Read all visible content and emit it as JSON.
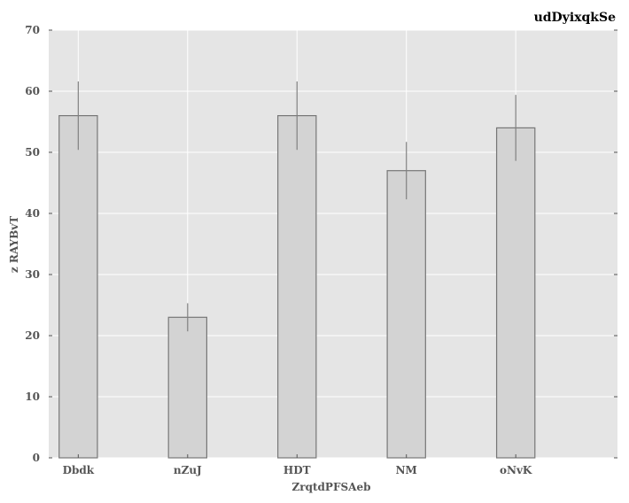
{
  "chart_data": {
    "type": "bar",
    "title": "udDyixqkSe",
    "xlabel": "ZrqtdPFSAeb",
    "ylabel": "z RAYBvT",
    "categories": [
      "Dbdk",
      "nZuJ",
      "HDT",
      "NM",
      "oNvK"
    ],
    "values": [
      56,
      23,
      56,
      47,
      54
    ],
    "errors": [
      5.6,
      2.3,
      5.6,
      4.7,
      5.4
    ],
    "ylim": [
      0,
      70
    ],
    "yticks": [
      0,
      10,
      20,
      30,
      40,
      50,
      60,
      70
    ],
    "grid": true,
    "legend": "none"
  },
  "colors": {
    "plot_background": "#e5e5e5",
    "bar_fill": "#d3d3d3",
    "bar_edge": "#777777",
    "grid": "#ffffff",
    "error_bar": "#808080"
  }
}
